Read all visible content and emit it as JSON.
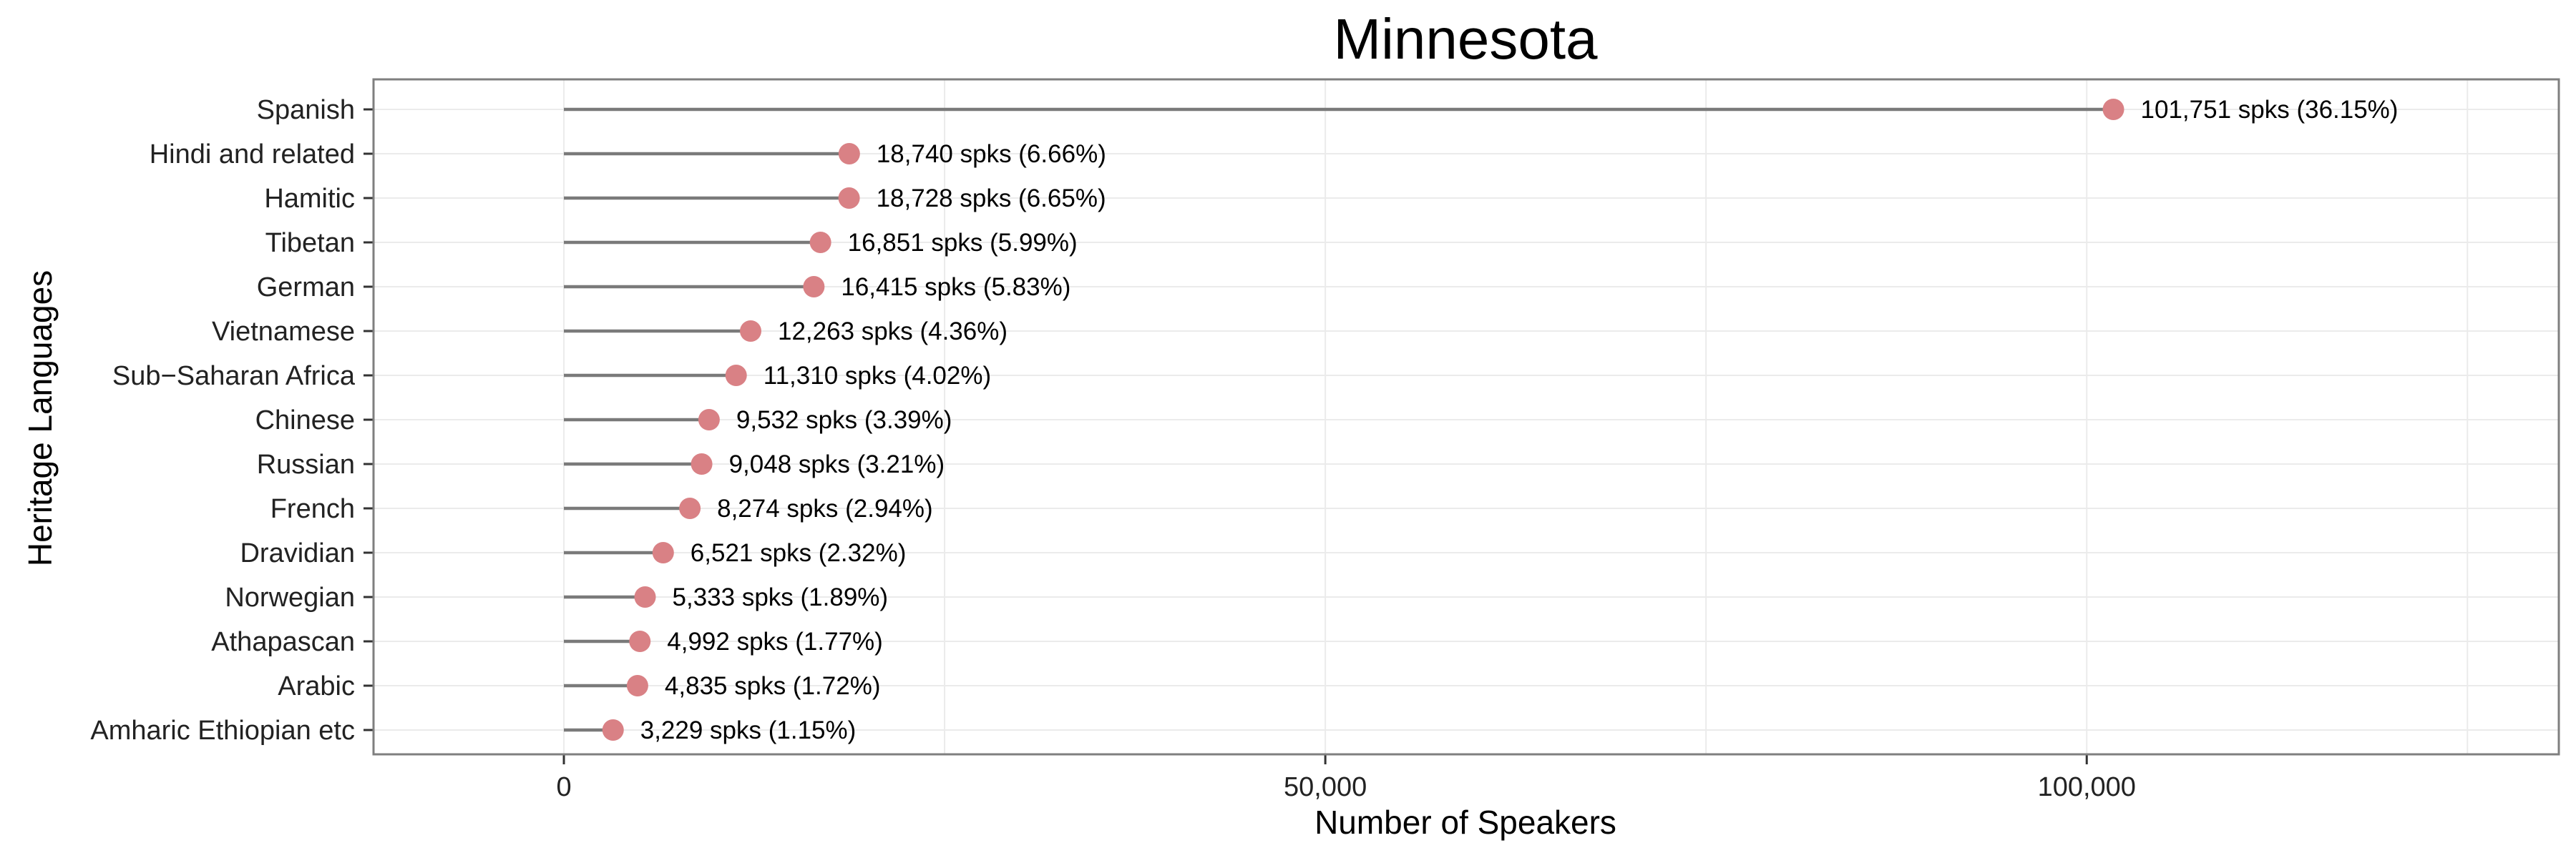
{
  "chart_data": {
    "type": "lollipop",
    "title": "Minnesota",
    "xlabel": "Number of Speakers",
    "ylabel": "Heritage Languages",
    "xlim": [
      -12500,
      131000
    ],
    "x_ticks": [
      0,
      50000,
      100000
    ],
    "x_tick_labels": [
      "0",
      "50,000",
      "100,000"
    ],
    "grid": true,
    "point_color": "#d98185",
    "stem_color": "#7a7a7a",
    "categories": [
      "Spanish",
      "Hindi and related",
      "Hamitic",
      "Tibetan",
      "German",
      "Vietnamese",
      "Sub−Saharan Africa",
      "Chinese",
      "Russian",
      "French",
      "Dravidian",
      "Norwegian",
      "Athapascan",
      "Arabic",
      "Amharic Ethiopian etc"
    ],
    "values": [
      101751,
      18740,
      18728,
      16851,
      16415,
      12263,
      11310,
      9532,
      9048,
      8274,
      6521,
      5333,
      4992,
      4835,
      3229
    ],
    "data_labels": [
      "101,751 spks (36.15%)",
      "18,740 spks (6.66%)",
      "18,728 spks (6.65%)",
      "16,851 spks (5.99%)",
      "16,415 spks (5.83%)",
      "12,263 spks (4.36%)",
      "11,310 spks (4.02%)",
      "9,532 spks (3.39%)",
      "9,048 spks (3.21%)",
      "8,274 spks (2.94%)",
      "6,521 spks (2.32%)",
      "5,333 spks (1.89%)",
      "4,992 spks (1.77%)",
      "4,835 spks (1.72%)",
      "3,229 spks (1.15%)"
    ]
  }
}
